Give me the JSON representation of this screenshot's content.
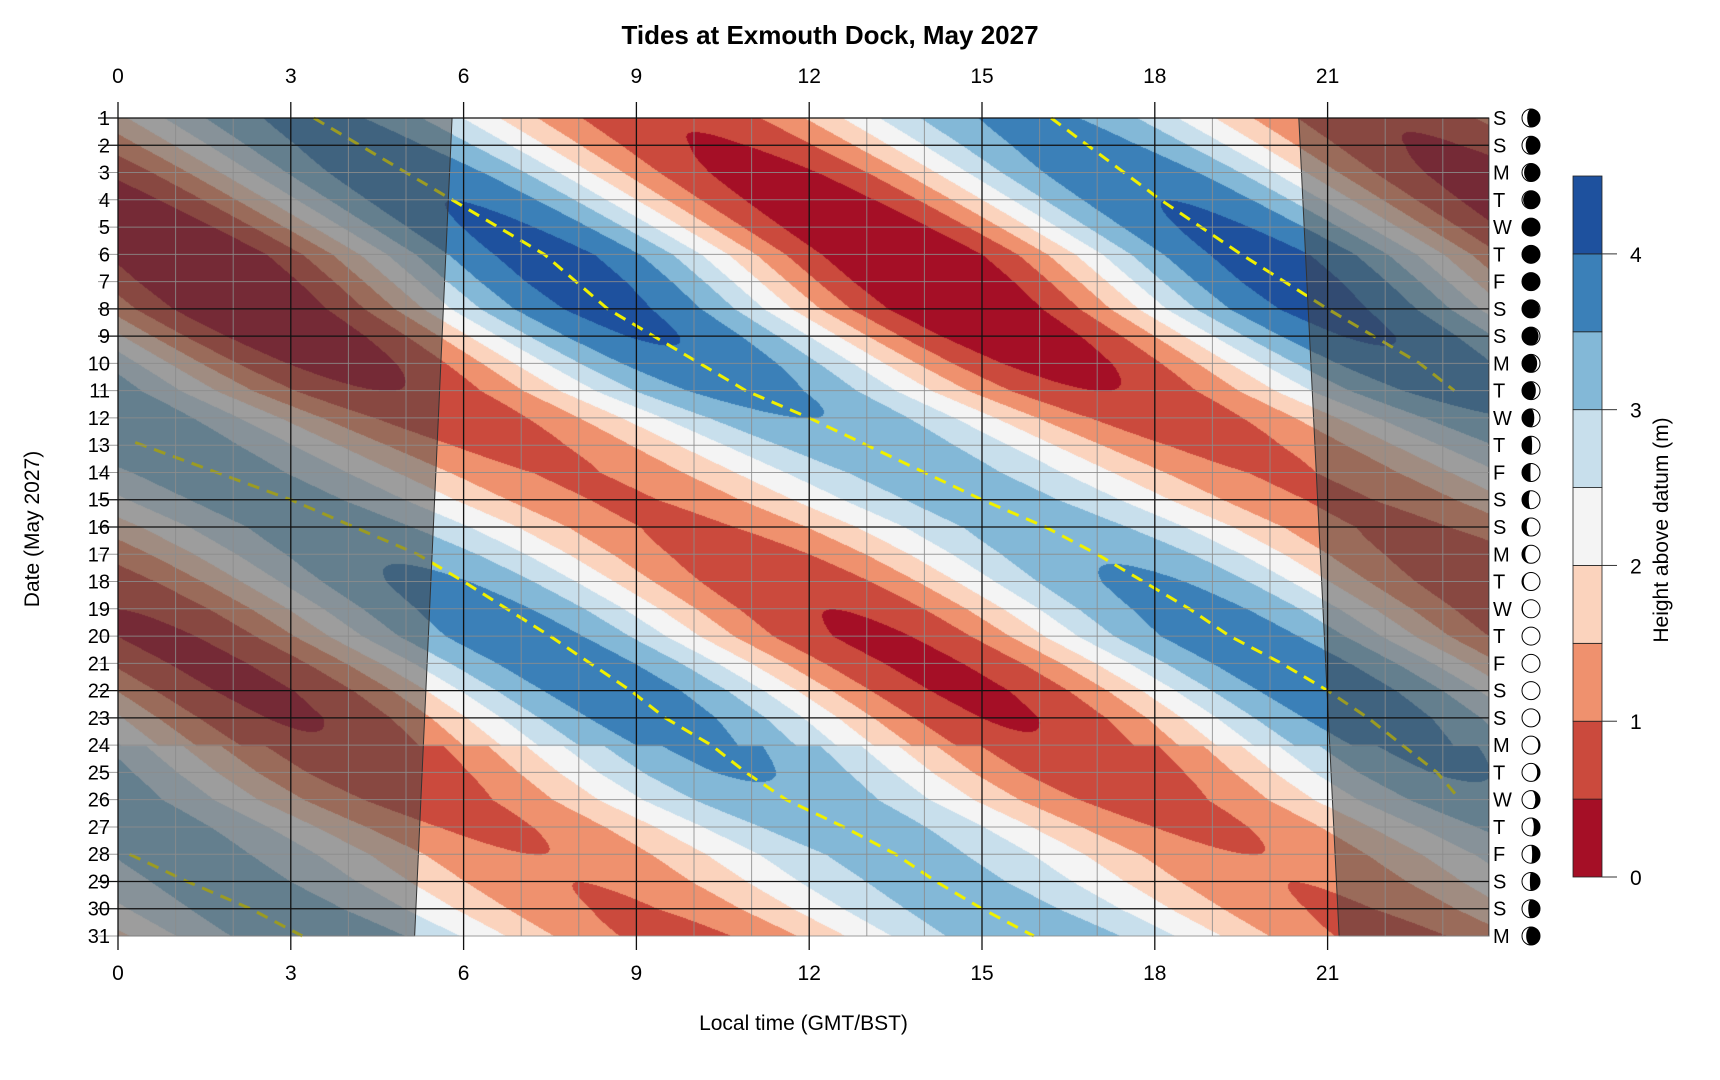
{
  "chart_data": {
    "type": "heatmap",
    "subtype": "filled-contour",
    "title": "Tides at Exmouth Dock, May 2027",
    "xlabel": "Local time (GMT/BST)",
    "ylabel": "Date (May 2027)",
    "xlim": [
      0,
      23.8
    ],
    "ylim": [
      1,
      31
    ],
    "x_ticks": [
      0,
      3,
      6,
      9,
      12,
      15,
      18,
      21
    ],
    "y_ticks": [
      1,
      2,
      3,
      4,
      5,
      6,
      7,
      8,
      9,
      10,
      11,
      12,
      13,
      14,
      15,
      16,
      17,
      18,
      19,
      20,
      21,
      22,
      23,
      24,
      25,
      26,
      27,
      28,
      29,
      30,
      31
    ],
    "weekdays": [
      "S",
      "S",
      "M",
      "T",
      "W",
      "T",
      "F",
      "S",
      "S",
      "M",
      "T",
      "W",
      "T",
      "F",
      "S",
      "S",
      "M",
      "T",
      "W",
      "T",
      "F",
      "S",
      "S",
      "M",
      "T",
      "W",
      "T",
      "F",
      "S",
      "S",
      "M"
    ],
    "moon_age_fraction": [
      0.82,
      0.85,
      0.89,
      0.92,
      0.96,
      0.99,
      0.02,
      0.06,
      0.09,
      0.13,
      0.16,
      0.19,
      0.23,
      0.26,
      0.29,
      0.33,
      0.36,
      0.4,
      0.43,
      0.46,
      0.5,
      0.53,
      0.57,
      0.6,
      0.63,
      0.67,
      0.7,
      0.73,
      0.77,
      0.8,
      0.84
    ],
    "highlighted_days": [
      1,
      2,
      8,
      9,
      15,
      16,
      22,
      23,
      29,
      30
    ],
    "colorbar": {
      "label": "Height above datum (m)",
      "levels": [
        0,
        0.5,
        1,
        1.5,
        2,
        2.5,
        3,
        3.5,
        4,
        4.5
      ],
      "colors": [
        "#a50f26",
        "#cb4a3d",
        "#ef916e",
        "#fbd3bd",
        "#f4f4f4",
        "#c8dfec",
        "#83b8d7",
        "#3b80b8",
        "#1e519e"
      ],
      "ticks": [
        0,
        1,
        2,
        3,
        4
      ],
      "tick_labels": [
        "0",
        "1",
        "2",
        "3",
        "4"
      ]
    },
    "mean_level_m": 2.1,
    "tidal_amplitude_m": [
      1.55,
      1.65,
      1.8,
      1.9,
      2.0,
      2.1,
      2.1,
      2.05,
      1.95,
      1.8,
      1.6,
      1.4,
      1.25,
      1.15,
      1.15,
      1.2,
      1.35,
      1.5,
      1.6,
      1.7,
      1.7,
      1.7,
      1.65,
      1.55,
      1.45,
      1.3,
      1.2,
      1.1,
      1.1,
      1.15,
      1.25
    ],
    "tidal_period_h": 12.42,
    "high_water_lines": [
      [
        [
          1,
          3.4
        ],
        [
          4,
          5.8
        ],
        [
          6,
          7.4
        ],
        [
          8,
          8.5
        ],
        [
          9,
          9.3
        ],
        [
          10,
          10.1
        ],
        [
          11,
          10.9
        ],
        [
          12,
          12
        ],
        [
          13,
          13
        ],
        [
          14,
          14
        ],
        [
          15,
          15
        ],
        [
          16,
          16.1
        ],
        [
          17,
          17
        ],
        [
          18,
          17.8
        ],
        [
          19,
          18.6
        ],
        [
          20,
          19.3
        ],
        [
          21,
          20.2
        ],
        [
          22,
          21
        ],
        [
          23,
          21.7
        ],
        [
          24,
          22.3
        ],
        [
          25,
          22.9
        ],
        [
          26,
          23.3
        ]
      ],
      [
        [
          1,
          16.2
        ],
        [
          4,
          18.1
        ],
        [
          6,
          19.5
        ],
        [
          8,
          21
        ],
        [
          9,
          21.8
        ],
        [
          10,
          22.6
        ],
        [
          11,
          23.2
        ]
      ],
      [
        [
          12.9,
          0.3
        ],
        [
          15,
          3
        ],
        [
          17,
          5.2
        ],
        [
          18,
          6
        ],
        [
          20,
          7.5
        ],
        [
          21,
          8.2
        ],
        [
          22,
          8.9
        ],
        [
          23,
          9.5
        ],
        [
          24,
          10.3
        ],
        [
          25,
          10.9
        ],
        [
          26,
          11.6
        ],
        [
          27,
          12.6
        ],
        [
          28,
          13.5
        ],
        [
          29,
          14.2
        ],
        [
          30,
          15
        ],
        [
          31,
          15.9
        ]
      ],
      [
        [
          28,
          0.2
        ],
        [
          29,
          1.2
        ],
        [
          30,
          2.3
        ],
        [
          31,
          3.2
        ]
      ]
    ],
    "high_water_color": "#f0f000",
    "sunrise_hour": {
      "day_1": 5.8,
      "day_31": 5.15
    },
    "sunset_hour": {
      "day_1": 20.5,
      "day_31": 21.2
    }
  }
}
